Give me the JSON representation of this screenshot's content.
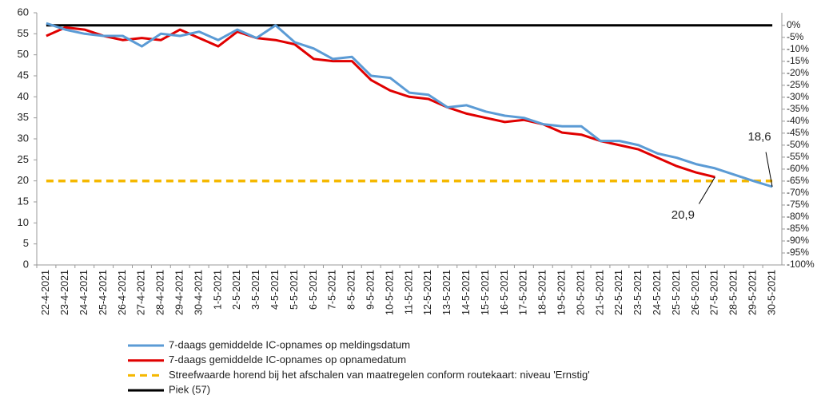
{
  "chart_data": {
    "type": "line",
    "categories": [
      "22-4-2021",
      "23-4-2021",
      "24-4-2021",
      "25-4-2021",
      "26-4-2021",
      "27-4-2021",
      "28-4-2021",
      "29-4-2021",
      "30-4-2021",
      "1-5-2021",
      "2-5-2021",
      "3-5-2021",
      "4-5-2021",
      "5-5-2021",
      "6-5-2021",
      "7-5-2021",
      "8-5-2021",
      "9-5-2021",
      "10-5-2021",
      "11-5-2021",
      "12-5-2021",
      "13-5-2021",
      "14-5-2021",
      "15-5-2021",
      "16-5-2021",
      "17-5-2021",
      "18-5-2021",
      "19-5-2021",
      "20-5-2021",
      "21-5-2021",
      "22-5-2021",
      "23-5-2021",
      "24-5-2021",
      "25-5-2021",
      "26-5-2021",
      "27-5-2021",
      "28-5-2021",
      "29-5-2021",
      "30-5-2021"
    ],
    "series": [
      {
        "name": "7-daags gemiddelde IC-opnames op meldingsdatum",
        "color": "#5b9bd5",
        "values": [
          57.5,
          56,
          55,
          54.5,
          54.5,
          52,
          55,
          54.5,
          55.5,
          53.5,
          56,
          54,
          57,
          53,
          51.5,
          49,
          49.5,
          45,
          44.5,
          41,
          40.5,
          37.5,
          38,
          36.5,
          35.5,
          35,
          33.5,
          33,
          33,
          29.5,
          29.5,
          28.5,
          26.5,
          25.5,
          24,
          23,
          21.5,
          20,
          18.6
        ],
        "value_labels": [
          null,
          null,
          null,
          null,
          null,
          null,
          null,
          null,
          null,
          null,
          null,
          null,
          null,
          null,
          null,
          null,
          null,
          null,
          null,
          null,
          null,
          null,
          null,
          null,
          null,
          null,
          null,
          null,
          null,
          null,
          null,
          null,
          null,
          null,
          null,
          null,
          null,
          null,
          "18,6"
        ]
      },
      {
        "name": "7-daags gemiddelde IC-opnames op opnamedatum",
        "color": "#e00000",
        "values": [
          54.5,
          56.5,
          56,
          54.5,
          53.5,
          54,
          53.5,
          56,
          54,
          52,
          55.5,
          54,
          53.5,
          52.5,
          49,
          48.5,
          48.5,
          44,
          41.5,
          40,
          39.5,
          37.5,
          36,
          35,
          34,
          34.5,
          33.5,
          31.5,
          31,
          29.5,
          28.5,
          27.5,
          25.5,
          23.5,
          22,
          20.9,
          null,
          null,
          null
        ],
        "value_labels": [
          null,
          null,
          null,
          null,
          null,
          null,
          null,
          null,
          null,
          null,
          null,
          null,
          null,
          null,
          null,
          null,
          null,
          null,
          null,
          null,
          null,
          null,
          null,
          null,
          null,
          null,
          null,
          null,
          null,
          null,
          null,
          null,
          null,
          null,
          null,
          "20,9",
          null,
          null,
          null
        ]
      },
      {
        "name": "Streefwaarde horend bij het afschalen van maatregelen conform routekaart: niveau 'Ernstig'",
        "color": "#f5b800",
        "dashed": true,
        "values": [
          20,
          20,
          20,
          20,
          20,
          20,
          20,
          20,
          20,
          20,
          20,
          20,
          20,
          20,
          20,
          20,
          20,
          20,
          20,
          20,
          20,
          20,
          20,
          20,
          20,
          20,
          20,
          20,
          20,
          20,
          20,
          20,
          20,
          20,
          20,
          20,
          20,
          20,
          20
        ]
      },
      {
        "name": "Piek (57)",
        "color": "#000000",
        "values": [
          57,
          57,
          57,
          57,
          57,
          57,
          57,
          57,
          57,
          57,
          57,
          57,
          57,
          57,
          57,
          57,
          57,
          57,
          57,
          57,
          57,
          57,
          57,
          57,
          57,
          57,
          57,
          57,
          57,
          57,
          57,
          57,
          57,
          57,
          57,
          57,
          57,
          57,
          57
        ]
      }
    ],
    "ylim": [
      0,
      60
    ],
    "yticks": [
      0,
      5,
      10,
      15,
      20,
      25,
      30,
      35,
      40,
      45,
      50,
      55,
      60
    ],
    "y2lim": [
      -100,
      5.26
    ],
    "y2ticks": [
      {
        "value": 0,
        "label": "0%"
      },
      {
        "value": -5,
        "label": "-5%"
      },
      {
        "value": -10,
        "label": "-10%"
      },
      {
        "value": -15,
        "label": "-15%"
      },
      {
        "value": -20,
        "label": "-20%"
      },
      {
        "value": -25,
        "label": "-25%"
      },
      {
        "value": -30,
        "label": "-30%"
      },
      {
        "value": -35,
        "label": "-35%"
      },
      {
        "value": -40,
        "label": "-40%"
      },
      {
        "value": -45,
        "label": "-45%"
      },
      {
        "value": -50,
        "label": "-50%"
      },
      {
        "value": -55,
        "label": "-55%"
      },
      {
        "value": -60,
        "label": "-60%"
      },
      {
        "value": -65,
        "label": "-65%"
      },
      {
        "value": -70,
        "label": "-70%"
      },
      {
        "value": -75,
        "label": "-75%"
      },
      {
        "value": -80,
        "label": "-80%"
      },
      {
        "value": -85,
        "label": "-85%"
      },
      {
        "value": -90,
        "label": "-90%"
      },
      {
        "value": -95,
        "label": "-95%"
      },
      {
        "value": -100,
        "label": "-100%"
      }
    ],
    "grid": false
  }
}
